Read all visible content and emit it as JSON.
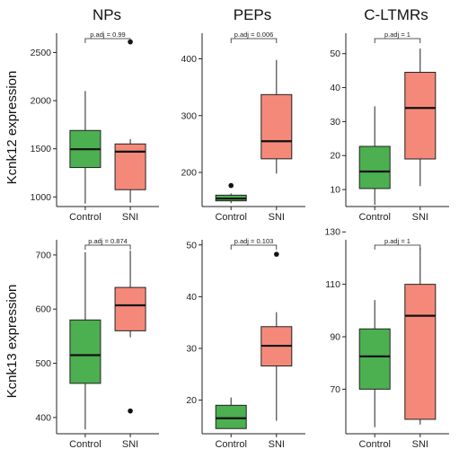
{
  "figure": {
    "column_titles": [
      "NPs",
      "PEPs",
      "C-LTMRs"
    ],
    "row_labels": [
      "Kcnk12 expression",
      "Kcnk13 expression"
    ]
  },
  "colors": {
    "Control": "#4caf50",
    "SNI": "#f4897a",
    "outline": "#222222"
  },
  "chart_data": [
    {
      "type": "box",
      "row": 0,
      "col": 0,
      "title": "NPs",
      "ylabel": "Kcnk12 expression",
      "categories": [
        "Control",
        "SNI"
      ],
      "ylim": [
        900,
        2700
      ],
      "yticks": [
        1000,
        1500,
        2000,
        2500
      ],
      "annotation": "p.adj = 0.99",
      "boxes": [
        {
          "name": "Control",
          "whislo": 930,
          "q1": 1305,
          "med": 1495,
          "q3": 1690,
          "whishi": 2100,
          "fliers": []
        },
        {
          "name": "SNI",
          "whislo": 940,
          "q1": 1075,
          "med": 1470,
          "q3": 1550,
          "whishi": 1600,
          "fliers": [
            2610
          ]
        }
      ]
    },
    {
      "type": "box",
      "row": 0,
      "col": 1,
      "title": "PEPs",
      "ylabel": "",
      "categories": [
        "Control",
        "SNI"
      ],
      "ylim": [
        140,
        445
      ],
      "yticks": [
        200,
        300,
        400
      ],
      "annotation": "p.adj = 0.006",
      "boxes": [
        {
          "name": "Control",
          "whislo": 146,
          "q1": 150,
          "med": 154,
          "q3": 160,
          "whishi": 163,
          "fliers": [
            177
          ]
        },
        {
          "name": "SNI",
          "whislo": 198,
          "q1": 224,
          "med": 255,
          "q3": 337,
          "whishi": 398,
          "fliers": []
        }
      ]
    },
    {
      "type": "box",
      "row": 0,
      "col": 2,
      "title": "C-LTMRs",
      "ylabel": "",
      "categories": [
        "Control",
        "SNI"
      ],
      "ylim": [
        5,
        56
      ],
      "yticks": [
        10,
        20,
        30,
        40,
        50
      ],
      "annotation": "p.adj = 1",
      "boxes": [
        {
          "name": "Control",
          "whislo": 5.5,
          "q1": 10.3,
          "med": 15.3,
          "q3": 22.7,
          "whishi": 34.5,
          "fliers": []
        },
        {
          "name": "SNI",
          "whislo": 11,
          "q1": 19,
          "med": 34,
          "q3": 44.5,
          "whishi": 51.5,
          "fliers": []
        }
      ]
    },
    {
      "type": "box",
      "row": 1,
      "col": 0,
      "title": "",
      "ylabel": "Kcnk13 expression",
      "categories": [
        "Control",
        "SNI"
      ],
      "ylim": [
        370,
        728
      ],
      "yticks": [
        400,
        500,
        600,
        700
      ],
      "annotation": "p.adj = 0.874",
      "boxes": [
        {
          "name": "Control",
          "whislo": 378,
          "q1": 463,
          "med": 515,
          "q3": 580,
          "whishi": 705,
          "fliers": []
        },
        {
          "name": "SNI",
          "whislo": 548,
          "q1": 560,
          "med": 607,
          "q3": 640,
          "whishi": 708,
          "fliers": [
            412
          ]
        }
      ]
    },
    {
      "type": "box",
      "row": 1,
      "col": 1,
      "title": "",
      "ylabel": "",
      "categories": [
        "Control",
        "SNI"
      ],
      "ylim": [
        13.5,
        51
      ],
      "yticks": [
        20,
        30,
        40,
        50
      ],
      "annotation": "p.adj = 0.103",
      "boxes": [
        {
          "name": "Control",
          "whislo": 14.5,
          "q1": 14.5,
          "med": 16.5,
          "q3": 19,
          "whishi": 20.5,
          "fliers": []
        },
        {
          "name": "SNI",
          "whislo": 16,
          "q1": 26.6,
          "med": 30.5,
          "q3": 34.2,
          "whishi": 37,
          "fliers": [
            48.2
          ]
        }
      ]
    },
    {
      "type": "box",
      "row": 1,
      "col": 2,
      "title": "",
      "ylabel": "",
      "categories": [
        "Control",
        "SNI"
      ],
      "ylim": [
        53,
        127
      ],
      "yticks": [
        70,
        90,
        110,
        130
      ],
      "annotation": "p.adj = 1",
      "boxes": [
        {
          "name": "Control",
          "whislo": 55.5,
          "q1": 70,
          "med": 82.5,
          "q3": 93,
          "whishi": 104,
          "fliers": []
        },
        {
          "name": "SNI",
          "whislo": 56.5,
          "q1": 58.5,
          "med": 98,
          "q3": 110,
          "whishi": 124,
          "fliers": []
        }
      ]
    }
  ]
}
